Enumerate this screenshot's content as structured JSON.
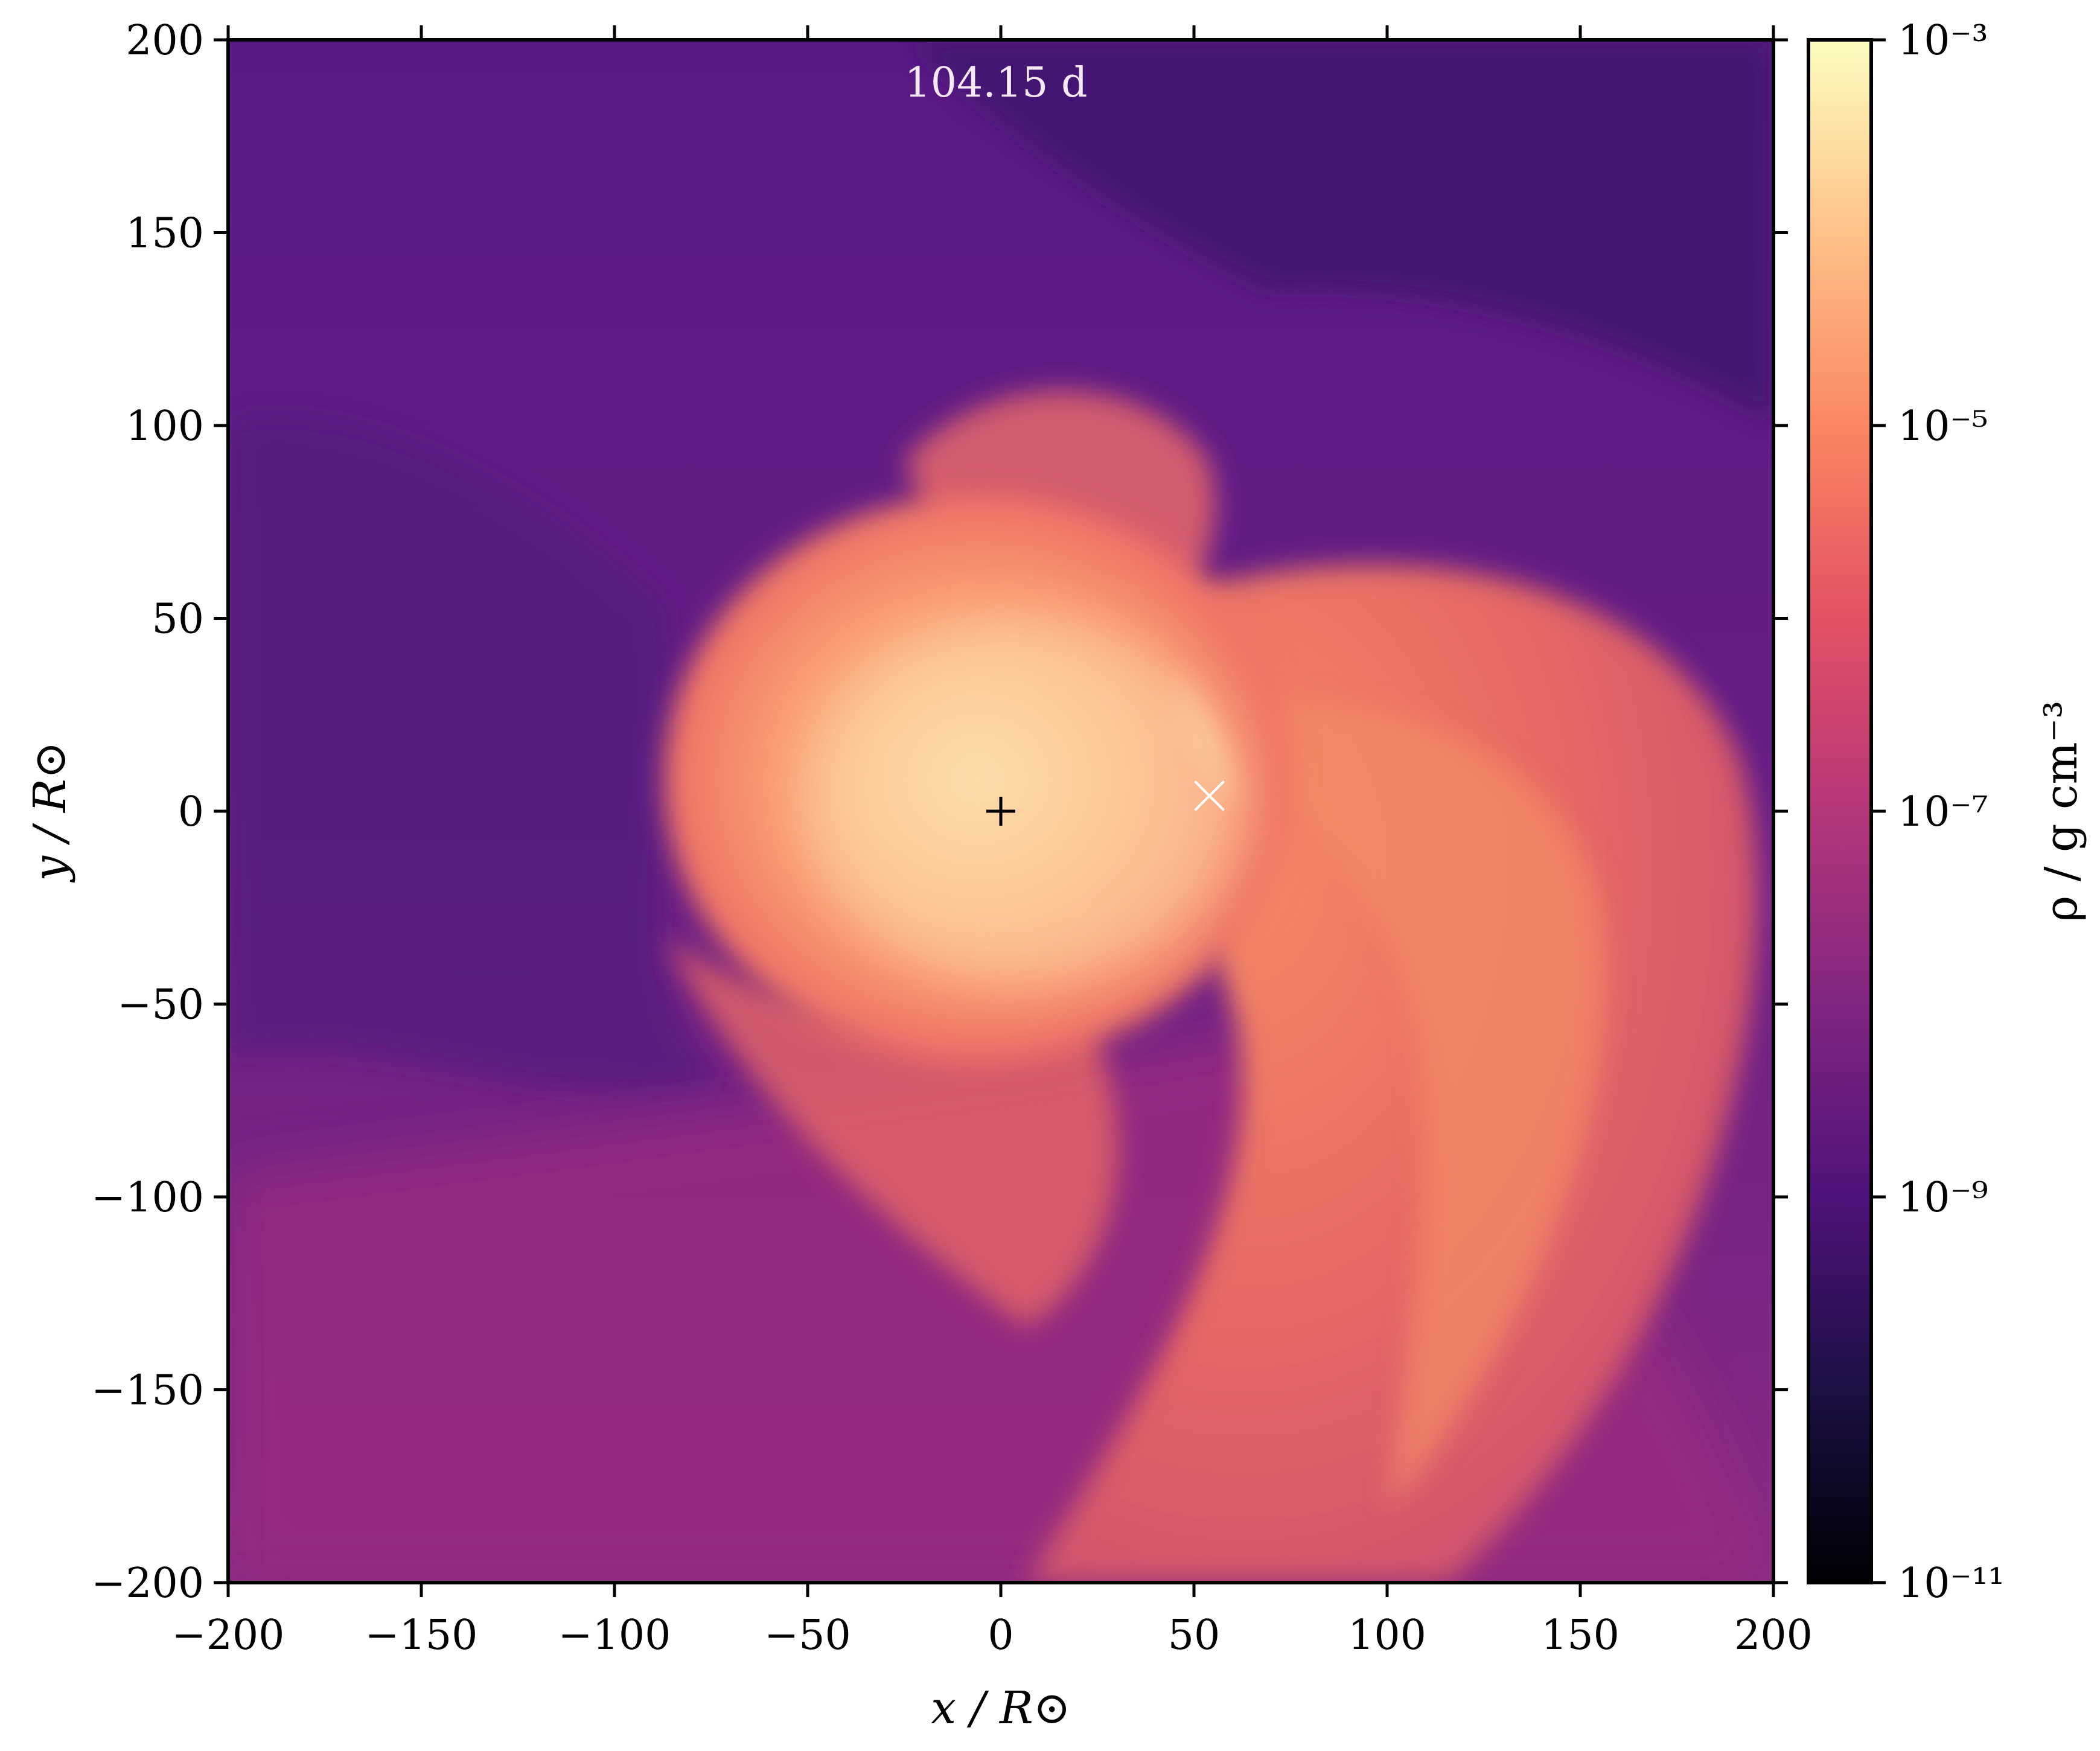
{
  "chart_data": {
    "type": "heatmap",
    "title": "",
    "annotation": "104.15 d",
    "xlabel": "x / R⊙",
    "ylabel": "y / R⊙",
    "xlim": [
      -200,
      200
    ],
    "ylim": [
      -200,
      200
    ],
    "xticks": [
      -200,
      -150,
      -100,
      -50,
      0,
      50,
      100,
      150,
      200
    ],
    "yticks": [
      -200,
      -150,
      -100,
      -50,
      0,
      50,
      100,
      150,
      200
    ],
    "xtick_labels": [
      "−200",
      "−150",
      "−100",
      "−50",
      "0",
      "50",
      "100",
      "150",
      "200"
    ],
    "ytick_labels": [
      "−200",
      "−150",
      "−100",
      "−50",
      "0",
      "50",
      "100",
      "150",
      "200"
    ],
    "grid": false,
    "colormap": "magma",
    "color_scale": "log",
    "colorbar": {
      "label": "ρ / g cm⁻³",
      "range": [
        1e-11,
        0.001
      ],
      "tick_exponents": [
        -11,
        -9,
        -7,
        -5,
        -3
      ],
      "tick_labels": [
        "10⁻¹¹",
        "10⁻⁹",
        "10⁻⁷",
        "10⁻⁵",
        "10⁻³"
      ]
    },
    "markers": [
      {
        "symbol": "+",
        "x": 0,
        "y": 0,
        "color": "#000000"
      },
      {
        "symbol": "x",
        "x": 54,
        "y": 4,
        "color": "#ffffff"
      }
    ]
  }
}
